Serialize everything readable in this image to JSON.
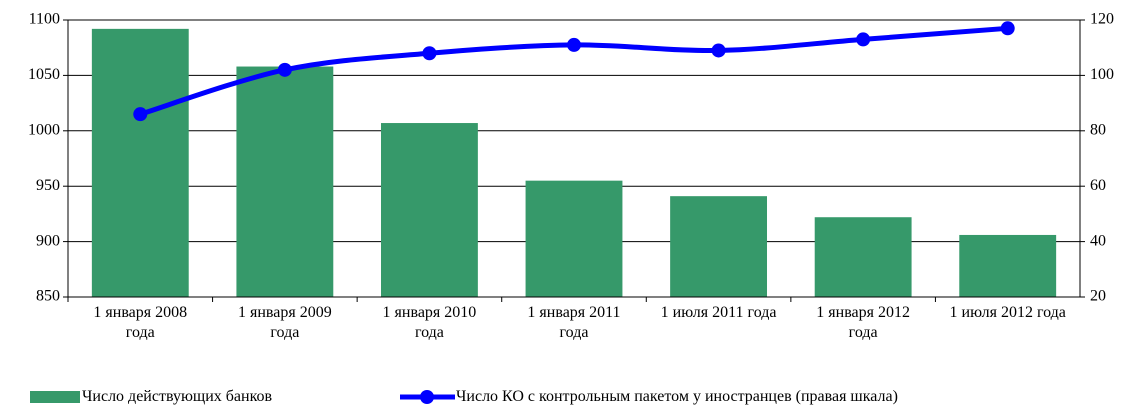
{
  "chart_data": {
    "type": "bar-line",
    "categories": [
      "1 января 2008 года",
      "1 января 2009 года",
      "1 января 2010 года",
      "1 января 2011 года",
      "1 июля 2011 года",
      "1 января 2012 года",
      "1 июля 2012 года"
    ],
    "series": [
      {
        "name": "Число действующих банков",
        "type": "bar",
        "color": "#36996a",
        "values": [
          1092,
          1058,
          1007,
          955,
          941,
          922,
          906
        ]
      },
      {
        "name": "Число КО с контрольным пакетом у иностранцев (правая шкала)",
        "type": "line",
        "axis": "y2",
        "color": "#0000ff",
        "values": [
          86,
          102,
          108,
          111,
          109,
          113,
          117
        ]
      }
    ],
    "ylim": [
      850,
      1100
    ],
    "yticks": [
      850,
      900,
      950,
      1000,
      1050,
      1100
    ],
    "y2lim": [
      20,
      120
    ],
    "y2ticks": [
      20,
      40,
      60,
      80,
      100,
      120
    ],
    "grid": true
  }
}
